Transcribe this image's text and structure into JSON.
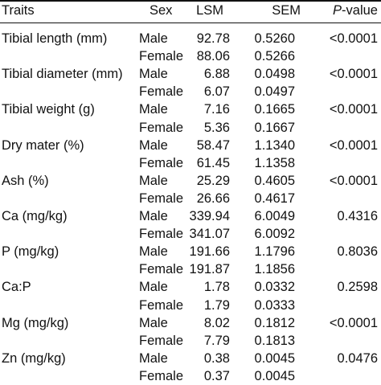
{
  "headers": {
    "traits": "Traits",
    "sex": "Sex",
    "lsm": "LSM",
    "sem": "SEM",
    "p_italic": "P",
    "p_rest": "-value"
  },
  "rows": [
    {
      "trait": "Tibial length (mm)",
      "sex": "Male",
      "lsm": "92.78",
      "sem": "0.5260",
      "p": "<0.0001"
    },
    {
      "trait": "",
      "sex": "Female",
      "lsm": "88.06",
      "sem": "0.5266",
      "p": ""
    },
    {
      "trait": "Tibial diameter (mm)",
      "sex": "Male",
      "lsm": "6.88",
      "sem": "0.0498",
      "p": "<0.0001"
    },
    {
      "trait": "",
      "sex": "Female",
      "lsm": "6.07",
      "sem": "0.0497",
      "p": ""
    },
    {
      "trait": "Tibial weight (g)",
      "sex": "Male",
      "lsm": "7.16",
      "sem": "0.1665",
      "p": "<0.0001"
    },
    {
      "trait": "",
      "sex": "Female",
      "lsm": "5.36",
      "sem": "0.1667",
      "p": ""
    },
    {
      "trait": "Dry mater (%)",
      "sex": "Male",
      "lsm": "58.47",
      "sem": "1.1340",
      "p": "<0.0001"
    },
    {
      "trait": "",
      "sex": "Female",
      "lsm": "61.45",
      "sem": "1.1358",
      "p": ""
    },
    {
      "trait": "Ash (%)",
      "sex": "Male",
      "lsm": "25.29",
      "sem": "0.4605",
      "p": "<0.0001"
    },
    {
      "trait": "",
      "sex": "Female",
      "lsm": "26.66",
      "sem": "0.4617",
      "p": ""
    },
    {
      "trait": "Ca (mg/kg)",
      "sex": "Male",
      "lsm": "339.94",
      "sem": "6.0049",
      "p": "0.4316"
    },
    {
      "trait": "",
      "sex": "Female",
      "lsm": "341.07",
      "sem": "6.0092",
      "p": ""
    },
    {
      "trait": "P (mg/kg)",
      "sex": "Male",
      "lsm": "191.66",
      "sem": "1.1796",
      "p": "0.8036"
    },
    {
      "trait": "",
      "sex": "Female",
      "lsm": "191.87",
      "sem": "1.1856",
      "p": ""
    },
    {
      "trait": "Ca:P",
      "sex": "Male",
      "lsm": "1.78",
      "sem": "0.0332",
      "p": "0.2598"
    },
    {
      "trait": "",
      "sex": "Female",
      "lsm": "1.79",
      "sem": "0.0333",
      "p": ""
    },
    {
      "trait": "Mg (mg/kg)",
      "sex": "Male",
      "lsm": "8.02",
      "sem": "0.1812",
      "p": "<0.0001"
    },
    {
      "trait": "",
      "sex": "Female",
      "lsm": "7.79",
      "sem": "0.1813",
      "p": ""
    },
    {
      "trait": "Zn (mg/kg)",
      "sex": "Male",
      "lsm": "0.38",
      "sem": "0.0045",
      "p": "0.0476"
    },
    {
      "trait": "",
      "sex": "Female",
      "lsm": "0.37",
      "sem": "0.0045",
      "p": ""
    }
  ]
}
